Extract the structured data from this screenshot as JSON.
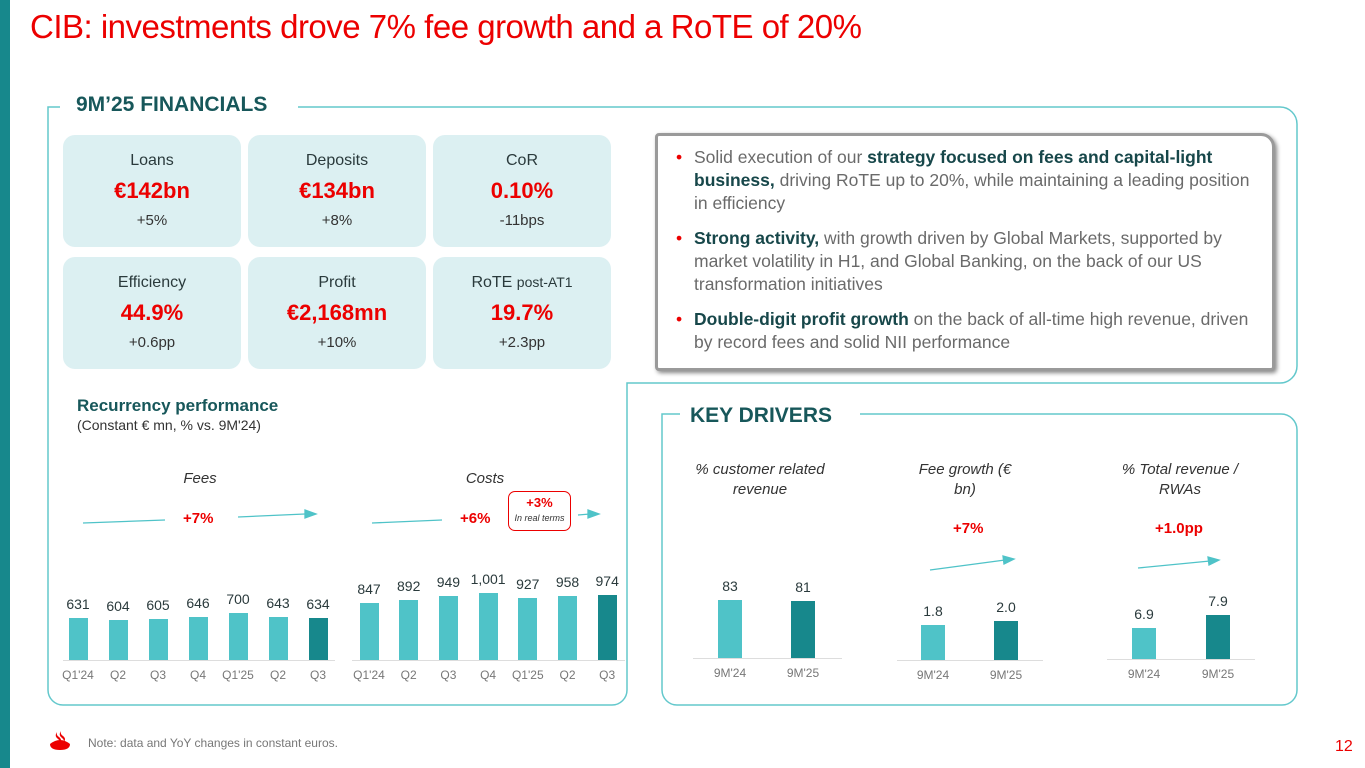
{
  "title": "CIB: investments drove 7% fee growth and a RoTE of 20%",
  "financials": {
    "heading": "9M’25 FINANCIALS",
    "tiles": [
      {
        "label": "Loans",
        "value": "€142bn",
        "change": "+5%"
      },
      {
        "label": "Deposits",
        "value": "€134bn",
        "change": "+8%"
      },
      {
        "label": "CoR",
        "value": "0.10%",
        "change": "-11bps"
      },
      {
        "label": "Efficiency",
        "value": "44.9%",
        "change": "+0.6pp"
      },
      {
        "label": "Profit",
        "value": "€2,168mn",
        "change": "+10%"
      },
      {
        "label": "RoTE",
        "label_suffix": "post-AT1",
        "value": "19.7%",
        "change": "+2.3pp"
      }
    ],
    "bullets": [
      {
        "pre": "Solid execution of our ",
        "bold": "strategy focused on fees and capital-light business,",
        "post": " driving RoTE up to 20%, while maintaining a leading position in efficiency"
      },
      {
        "pre": "",
        "bold": "Strong activity,",
        "post": " with growth driven by Global Markets, supported by market volatility in H1, and Global Banking, on the back of our US transformation initiatives"
      },
      {
        "pre": "",
        "bold": "Double-digit profit growth",
        "post": " on the back of all-time high revenue, driven by record fees and solid NII performance"
      }
    ],
    "recurrency_title": "Recurrency performance",
    "recurrency_sub": "(Constant € mn, % vs. 9M'24)",
    "costs_callout": {
      "value": "+3%",
      "text": "In real terms"
    }
  },
  "key_drivers": {
    "heading": "KEY DRIVERS"
  },
  "chart_data": [
    {
      "type": "bar",
      "title": "Fees",
      "growth": "+7%",
      "categories": [
        "Q1'24",
        "Q2",
        "Q3",
        "Q4",
        "Q1'25",
        "Q2",
        "Q3"
      ],
      "values": [
        631,
        604,
        605,
        646,
        700,
        643,
        634
      ],
      "value_labels": [
        "631",
        "604",
        "605",
        "646",
        "700",
        "643",
        "634"
      ],
      "highlight_last": true
    },
    {
      "type": "bar",
      "title": "Costs",
      "growth": "+6%",
      "categories": [
        "Q1'24",
        "Q2",
        "Q3",
        "Q4",
        "Q1'25",
        "Q2",
        "Q3"
      ],
      "values": [
        847,
        892,
        949,
        1001,
        927,
        958,
        974
      ],
      "value_labels": [
        "847",
        "892",
        "949",
        "1,001",
        "927",
        "958",
        "974"
      ],
      "highlight_last": true
    },
    {
      "type": "bar",
      "title": "% customer related revenue",
      "growth": "",
      "categories": [
        "9M'24",
        "9M'25"
      ],
      "values": [
        83,
        81
      ],
      "value_labels": [
        "83",
        "81"
      ],
      "highlight_last": true
    },
    {
      "type": "bar",
      "title": "Fee growth (€ bn)",
      "growth": "+7%",
      "categories": [
        "9M'24",
        "9M'25"
      ],
      "values": [
        1.8,
        2.0
      ],
      "value_labels": [
        "1.8",
        "2.0"
      ],
      "highlight_last": true
    },
    {
      "type": "bar",
      "title": "% Total revenue / RWAs",
      "growth": "+1.0pp",
      "categories": [
        "9M'24",
        "9M'25"
      ],
      "values": [
        6.9,
        7.9
      ],
      "value_labels": [
        "6.9",
        "7.9"
      ],
      "highlight_last": true
    }
  ],
  "colors": {
    "red": "#ec0000",
    "teal_light": "#4fc3c8",
    "teal_dark": "#17888c"
  },
  "footer": {
    "note": "Note: data and YoY changes in constant euros.",
    "page": "12"
  }
}
